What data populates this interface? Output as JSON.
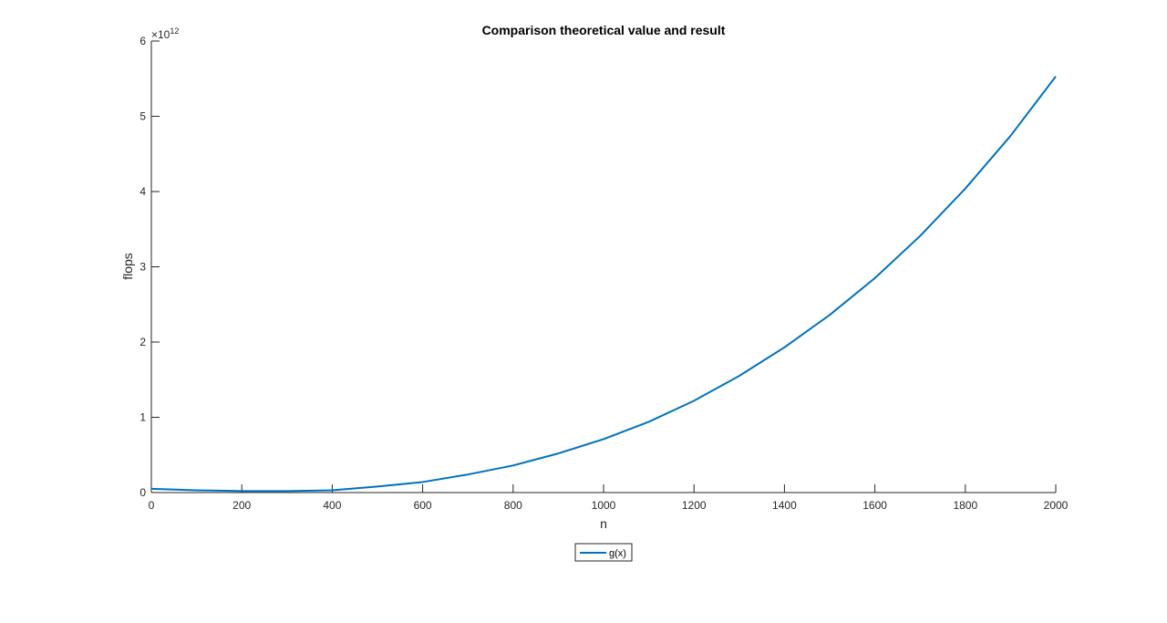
{
  "chart_data": {
    "type": "line",
    "title": "Comparison theoretical value and result",
    "xlabel": "n",
    "ylabel": "flops",
    "xlim": [
      0,
      2000
    ],
    "ylim": [
      0,
      6
    ],
    "y_multiplier": "×10",
    "y_multiplier_exponent": "12",
    "xticks": [
      "0",
      "200",
      "400",
      "600",
      "800",
      "1000",
      "1200",
      "1400",
      "1600",
      "1800",
      "2000"
    ],
    "yticks": [
      "0",
      "1",
      "2",
      "3",
      "4",
      "5",
      "6"
    ],
    "grid": false,
    "legend_position": "bottom-center-outside",
    "series": [
      {
        "name": "g(x)",
        "color": "#0072bd",
        "x": [
          0,
          100,
          200,
          300,
          400,
          500,
          600,
          700,
          800,
          900,
          1000,
          1100,
          1200,
          1300,
          1400,
          1500,
          1600,
          1700,
          1800,
          1900,
          2000
        ],
        "y": [
          0.05,
          0.03,
          0.02,
          0.02,
          0.03,
          0.08,
          0.14,
          0.24,
          0.36,
          0.52,
          0.71,
          0.94,
          1.22,
          1.55,
          1.93,
          2.36,
          2.85,
          3.41,
          4.04,
          4.74,
          5.53
        ]
      }
    ]
  }
}
